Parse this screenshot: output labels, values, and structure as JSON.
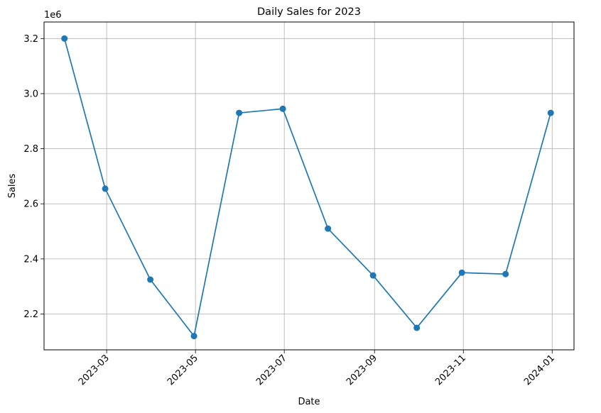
{
  "chart_data": {
    "type": "line",
    "title": "Daily Sales for 2023",
    "xlabel": "Date",
    "ylabel": "Sales",
    "y_offset_label": "1e6",
    "grid": true,
    "x_ticks": [
      "2023-03",
      "2023-05",
      "2023-07",
      "2023-09",
      "2023-11",
      "2024-01"
    ],
    "y_ticks": [
      "2.2",
      "2.4",
      "2.6",
      "2.8",
      "3.0",
      "3.2"
    ],
    "xlim": [
      "2023-01-17",
      "2024-01-16"
    ],
    "ylim": [
      2070000,
      3260000
    ],
    "series": [
      {
        "color": "#1f77b4",
        "marker": "circle",
        "points": [
          {
            "x": "2023-01-31",
            "y": 3200000
          },
          {
            "x": "2023-02-28",
            "y": 2655000
          },
          {
            "x": "2023-03-31",
            "y": 2325000
          },
          {
            "x": "2023-04-30",
            "y": 2120000
          },
          {
            "x": "2023-05-31",
            "y": 2930000
          },
          {
            "x": "2023-06-30",
            "y": 2945000
          },
          {
            "x": "2023-07-31",
            "y": 2510000
          },
          {
            "x": "2023-08-31",
            "y": 2340000
          },
          {
            "x": "2023-09-30",
            "y": 2150000
          },
          {
            "x": "2023-10-31",
            "y": 2350000
          },
          {
            "x": "2023-11-30",
            "y": 2345000
          },
          {
            "x": "2023-12-31",
            "y": 2930000
          }
        ]
      }
    ]
  }
}
